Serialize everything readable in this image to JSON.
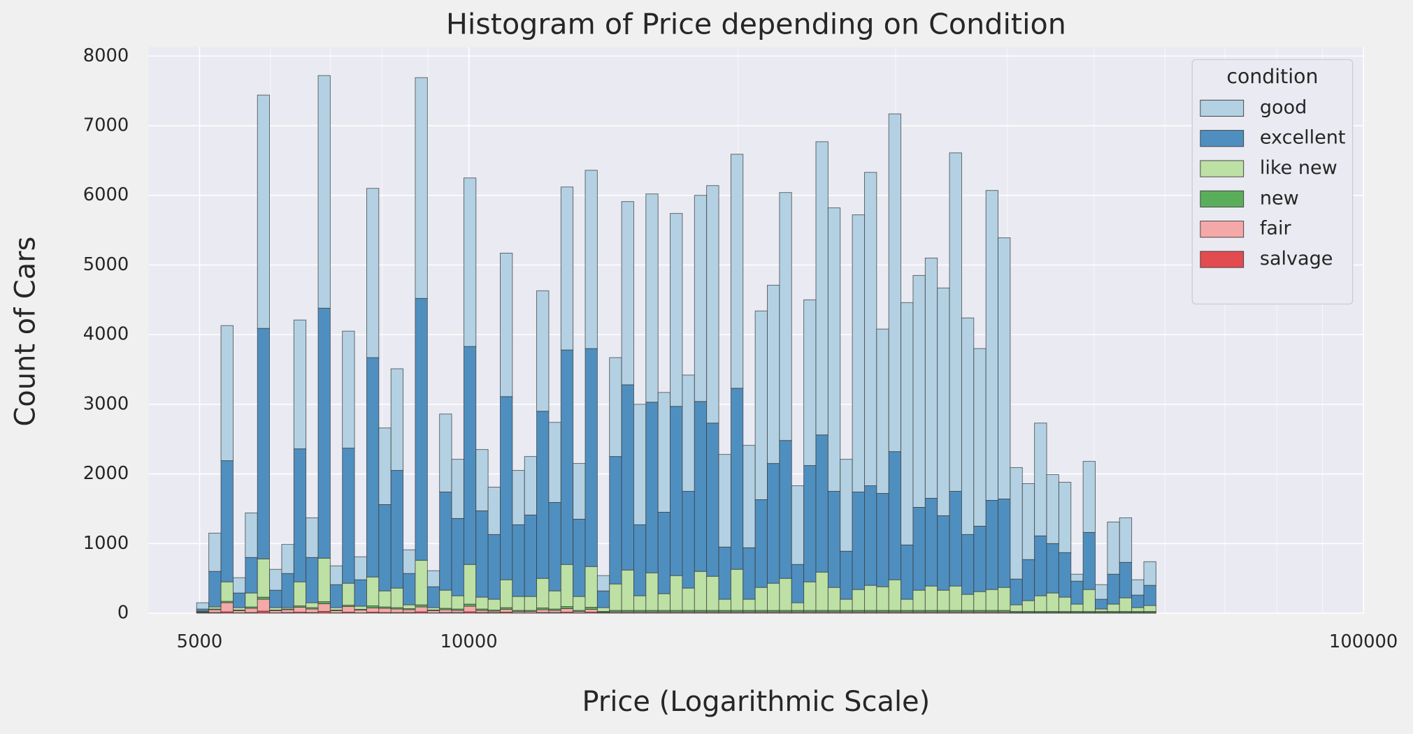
{
  "chart_data": {
    "type": "histogram",
    "title": "Histogram of Price depending on Condition",
    "x_label": "Price (Logarithmic Scale)",
    "y_label": "Count of Cars",
    "x_log": true,
    "stacked": true,
    "grid": true,
    "legend_title": "condition",
    "legend_position": "upper right",
    "xlim": [
      4386,
      100000
    ],
    "xticks": [
      5000,
      10000,
      100000
    ],
    "ylim": [
      0,
      8130
    ],
    "yticks": [
      0,
      1000,
      2000,
      3000,
      4000,
      5000,
      6000,
      7000,
      8000
    ],
    "bins": [
      4962,
      5120,
      5283,
      5451,
      5624,
      5803,
      5987,
      6177,
      6373,
      6575,
      6784,
      6999,
      7221,
      7450,
      7687,
      7931,
      8183,
      8443,
      8711,
      8988,
      9273,
      9567,
      9871,
      10184,
      10507,
      10841,
      11185,
      11540,
      11906,
      12284,
      12674,
      13076,
      13491,
      13919,
      14361,
      14817,
      15287,
      15772,
      16273,
      16790,
      17323,
      17873,
      18440,
      19026,
      19630,
      20253,
      20896,
      21559,
      22244,
      22950,
      23679,
      24431,
      25207,
      26007,
      26833,
      27685,
      28564,
      29471,
      30407,
      31372,
      32368,
      33396,
      34456,
      35550,
      36679,
      37844,
      39046,
      40286,
      41565,
      42885,
      44247,
      45652,
      47102,
      48598,
      50141,
      51733,
      53376,
      55071,
      56820,
      58624
    ],
    "series": [
      {
        "name": "good",
        "color": "#b3d1e3",
        "values": [
          90,
          550,
          1940,
          220,
          640,
          3350,
          300,
          420,
          1850,
          570,
          3340,
          270,
          1680,
          330,
          2430,
          1100,
          1460,
          340,
          3170,
          230,
          1120,
          850,
          2420,
          880,
          680,
          2060,
          780,
          840,
          1730,
          1150,
          2340,
          800,
          2560,
          220,
          1420,
          2630,
          1730,
          2990,
          1720,
          2770,
          1670,
          2960,
          3410,
          1330,
          3360,
          1470,
          2710,
          2560,
          3560,
          1130,
          2380,
          4210,
          4070,
          1320,
          3980,
          4500,
          2360,
          4850,
          3480,
          3330,
          3450,
          3270,
          4860,
          3110,
          2550,
          4450,
          3750,
          1600,
          1090,
          1620,
          990,
          1010,
          100,
          1020,
          210,
          750,
          640,
          220,
          340
        ]
      },
      {
        "name": "excellent",
        "color": "#4f8fc0",
        "values": [
          30,
          510,
          1740,
          210,
          510,
          3310,
          250,
          490,
          1910,
          650,
          3590,
          330,
          1940,
          380,
          3150,
          1240,
          1690,
          450,
          3760,
          300,
          1410,
          1110,
          3130,
          1240,
          930,
          2630,
          1030,
          1170,
          2400,
          1270,
          3080,
          1110,
          3130,
          240,
          1830,
          2660,
          1020,
          2450,
          1170,
          2430,
          1390,
          2440,
          2200,
          750,
          2600,
          740,
          1260,
          1720,
          1980,
          550,
          1670,
          1970,
          1380,
          690,
          1400,
          1430,
          1340,
          1840,
          780,
          1190,
          1260,
          1070,
          1360,
          860,
          940,
          1280,
          1270,
          370,
          590,
          860,
          710,
          640,
          330,
          820,
          140,
          430,
          510,
          180,
          290
        ]
      },
      {
        "name": "like new",
        "color": "#bde0a5",
        "values": [
          10,
          30,
          280,
          35,
          200,
          550,
          35,
          20,
          345,
          70,
          625,
          35,
          315,
          45,
          415,
          230,
          280,
          55,
          640,
          35,
          260,
          190,
          570,
          170,
          155,
          400,
          200,
          200,
          425,
          260,
          605,
          200,
          585,
          55,
          380,
          580,
          210,
          540,
          240,
          500,
          320,
          560,
          490,
          160,
          590,
          160,
          330,
          390,
          460,
          110,
          410,
          550,
          330,
          160,
          300,
          360,
          340,
          440,
          160,
          290,
          350,
          290,
          350,
          230,
          270,
          300,
          330,
          95,
          155,
          225,
          265,
          205,
          105,
          315,
          35,
          105,
          195,
          55,
          85
        ]
      },
      {
        "name": "new",
        "color": "#5aae5a",
        "values": [
          5,
          10,
          20,
          10,
          20,
          30,
          10,
          10,
          20,
          20,
          30,
          10,
          20,
          10,
          30,
          20,
          20,
          15,
          30,
          10,
          20,
          20,
          30,
          20,
          15,
          25,
          15,
          15,
          25,
          20,
          30,
          15,
          30,
          10,
          20,
          20,
          20,
          20,
          20,
          20,
          20,
          20,
          20,
          20,
          20,
          20,
          20,
          20,
          20,
          20,
          20,
          20,
          20,
          20,
          20,
          20,
          20,
          20,
          20,
          20,
          20,
          20,
          20,
          20,
          20,
          20,
          20,
          15,
          15,
          15,
          15,
          15,
          15,
          15,
          15,
          15,
          15,
          15,
          15
        ]
      },
      {
        "name": "fair",
        "color": "#f5a8a8",
        "values": [
          10,
          40,
          130,
          30,
          60,
          170,
          30,
          40,
          70,
          50,
          110,
          30,
          80,
          40,
          60,
          60,
          50,
          40,
          70,
          30,
          40,
          30,
          80,
          30,
          20,
          40,
          20,
          20,
          40,
          30,
          50,
          20,
          40,
          10,
          15,
          15,
          15,
          15,
          15,
          15,
          15,
          15,
          15,
          15,
          15,
          15,
          15,
          15,
          15,
          15,
          15,
          15,
          15,
          15,
          15,
          15,
          15,
          15,
          15,
          15,
          15,
          15,
          15,
          15,
          15,
          15,
          15,
          7,
          7,
          7,
          7,
          7,
          7,
          7,
          7,
          7,
          7,
          7,
          7
        ]
      },
      {
        "name": "salvage",
        "color": "#e24b50",
        "values": [
          5,
          10,
          20,
          5,
          10,
          30,
          5,
          10,
          15,
          10,
          25,
          5,
          15,
          5,
          15,
          10,
          10,
          10,
          20,
          5,
          10,
          10,
          20,
          10,
          10,
          15,
          5,
          5,
          10,
          10,
          15,
          5,
          15,
          5,
          5,
          5,
          5,
          5,
          5,
          5,
          5,
          5,
          5,
          5,
          5,
          5,
          5,
          5,
          5,
          5,
          5,
          5,
          5,
          5,
          5,
          5,
          5,
          5,
          5,
          5,
          5,
          5,
          5,
          5,
          5,
          5,
          5,
          3,
          3,
          3,
          3,
          3,
          3,
          3,
          3,
          3,
          3,
          3,
          3
        ]
      }
    ]
  }
}
